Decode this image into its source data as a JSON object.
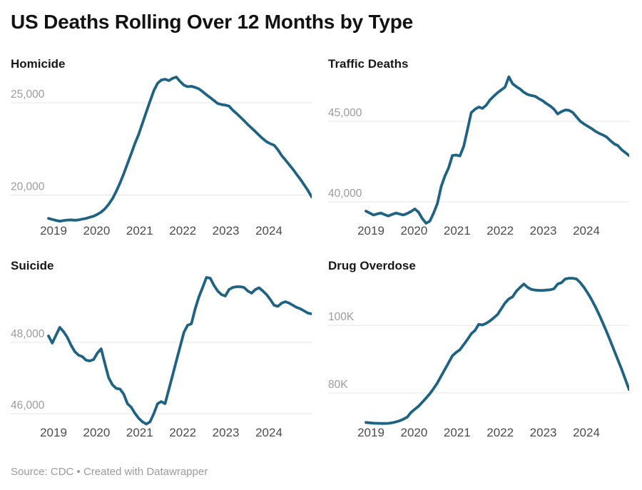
{
  "header": {
    "title": "US Deaths Rolling Over 12 Months by Type"
  },
  "footer": {
    "text": "Source: CDC • Created with Datawrapper"
  },
  "theme": {
    "background": "#ffffff",
    "line_color": "#1e6284",
    "grid_color": "#e4e4e4",
    "ytick_color": "#9b9b9b",
    "xtick_color": "#4c4c4c",
    "title_color": "#121212",
    "footer_color": "#9a9a9a"
  },
  "chart_data": [
    {
      "type": "line",
      "title": "Homicide",
      "unit": "deaths, rolling 12 months",
      "color": "#1e6284",
      "x_start": "2019-01",
      "x_interval": "monthly",
      "xticks": [
        "2019",
        "2020",
        "2021",
        "2022",
        "2023",
        "2024"
      ],
      "yticks": [
        {
          "value": 25000,
          "label": "25,000"
        },
        {
          "value": 20000,
          "label": "20,000"
        }
      ],
      "ylim": [
        18400,
        26700
      ],
      "grid": true,
      "legend": "none",
      "values": [
        18740,
        18680,
        18630,
        18590,
        18620,
        18650,
        18660,
        18640,
        18660,
        18700,
        18740,
        18800,
        18860,
        18960,
        19080,
        19260,
        19500,
        19800,
        20200,
        20650,
        21150,
        21700,
        22250,
        22800,
        23300,
        23900,
        24500,
        25080,
        25650,
        26050,
        26230,
        26270,
        26200,
        26320,
        26390,
        26150,
        25950,
        25870,
        25890,
        25830,
        25750,
        25600,
        25430,
        25280,
        25120,
        24960,
        24900,
        24870,
        24820,
        24600,
        24420,
        24230,
        24030,
        23820,
        23630,
        23440,
        23240,
        23050,
        22890,
        22780,
        22700,
        22450,
        22150,
        21900,
        21650,
        21400,
        21120,
        20850,
        20550,
        20250,
        19900
      ]
    },
    {
      "type": "line",
      "title": "Traffic Deaths",
      "unit": "deaths, rolling 12 months",
      "color": "#1e6284",
      "x_start": "2019-01",
      "x_interval": "monthly",
      "xticks": [
        "2019",
        "2020",
        "2021",
        "2022",
        "2023",
        "2024"
      ],
      "yticks": [
        {
          "value": 45000,
          "label": "45,000"
        },
        {
          "value": 40000,
          "label": "40,000"
        }
      ],
      "ylim": [
        38580,
        48100
      ],
      "grid": true,
      "legend": "none",
      "values": [
        39420,
        39300,
        39180,
        39250,
        39300,
        39200,
        39120,
        39220,
        39300,
        39240,
        39180,
        39280,
        39400,
        39560,
        39350,
        38950,
        38670,
        38800,
        39300,
        39900,
        40930,
        41600,
        42120,
        42876,
        42900,
        42850,
        43450,
        44470,
        45530,
        45750,
        45880,
        45800,
        46000,
        46330,
        46560,
        46770,
        46950,
        47120,
        47760,
        47330,
        47150,
        47000,
        46800,
        46660,
        46600,
        46550,
        46400,
        46270,
        46100,
        45950,
        45750,
        45450,
        45600,
        45700,
        45680,
        45550,
        45270,
        45000,
        44830,
        44690,
        44550,
        44380,
        44250,
        44150,
        44020,
        43800,
        43600,
        43490,
        43230,
        43050,
        42870
      ]
    },
    {
      "type": "line",
      "title": "Suicide",
      "unit": "deaths, rolling 12 months",
      "color": "#1e6284",
      "x_start": "2019-01",
      "x_interval": "monthly",
      "xticks": [
        "2019",
        "2020",
        "2021",
        "2022",
        "2023",
        "2024"
      ],
      "yticks": [
        {
          "value": 48000,
          "label": "48,000"
        },
        {
          "value": 46000,
          "label": "46,000"
        }
      ],
      "ylim": [
        45640,
        49940
      ],
      "grid": true,
      "legend": "none",
      "values": [
        48180,
        47980,
        48200,
        48420,
        48300,
        48140,
        47920,
        47740,
        47640,
        47600,
        47500,
        47480,
        47520,
        47700,
        47820,
        47400,
        47010,
        46810,
        46710,
        46690,
        46550,
        46280,
        46180,
        46010,
        45870,
        45770,
        45710,
        45770,
        46000,
        46280,
        46340,
        46280,
        46680,
        47080,
        47480,
        47880,
        48280,
        48480,
        48520,
        48940,
        49280,
        49540,
        49820,
        49800,
        49600,
        49440,
        49340,
        49300,
        49480,
        49540,
        49560,
        49560,
        49540,
        49440,
        49380,
        49480,
        49530,
        49440,
        49340,
        49200,
        49040,
        49010,
        49100,
        49140,
        49100,
        49040,
        48980,
        48940,
        48880,
        48820,
        48800
      ]
    },
    {
      "type": "line",
      "title": "Drug Overdose",
      "unit": "deaths, rolling 12 months",
      "color": "#1e6284",
      "x_start": "2019-01",
      "x_interval": "monthly",
      "xticks": [
        "2019",
        "2020",
        "2021",
        "2022",
        "2023",
        "2024"
      ],
      "yticks": [
        {
          "value": 100000,
          "label": "100K"
        },
        {
          "value": 80000,
          "label": "80K"
        }
      ],
      "ylim": [
        70100,
        115400
      ],
      "grid": true,
      "legend": "none",
      "values": [
        71300,
        71200,
        71100,
        71050,
        71000,
        71000,
        71050,
        71200,
        71500,
        71800,
        72300,
        72900,
        74300,
        75200,
        76100,
        77300,
        78500,
        79800,
        81300,
        83000,
        85000,
        87000,
        89000,
        91000,
        92000,
        92800,
        94300,
        95800,
        97500,
        98500,
        100300,
        100100,
        100600,
        101300,
        102200,
        103200,
        104900,
        106600,
        107800,
        108400,
        110100,
        111200,
        112200,
        111200,
        110600,
        110400,
        110300,
        110300,
        110400,
        110500,
        110800,
        112200,
        112600,
        113700,
        113900,
        113900,
        113700,
        112600,
        111200,
        109500,
        107600,
        105500,
        103200,
        100700,
        98100,
        95400,
        92600,
        89800,
        87000,
        84000,
        81000
      ]
    }
  ]
}
